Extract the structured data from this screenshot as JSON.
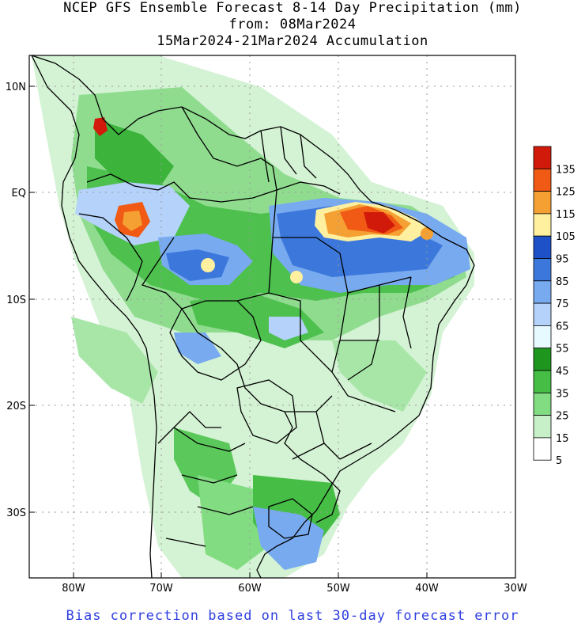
{
  "title": {
    "line1": "NCEP GFS Ensemble Forecast 8-14 Day Precipitation (mm)",
    "line2": "from: 08Mar2024",
    "line3": "15Mar2024-21Mar2024 Accumulation"
  },
  "axes": {
    "lat_labels": [
      "10N",
      "EQ",
      "10S",
      "20S",
      "30S"
    ],
    "lon_labels": [
      "80W",
      "70W",
      "60W",
      "50W",
      "40W",
      "30W"
    ]
  },
  "legend": {
    "labels": [
      "135",
      "125",
      "115",
      "105",
      "95",
      "85",
      "75",
      "65",
      "55",
      "45",
      "35",
      "25",
      "15",
      "5"
    ],
    "colors": [
      "#d11a0a",
      "#f05a14",
      "#f5a032",
      "#fff0a0",
      "#1e50c8",
      "#3c78dc",
      "#78aaf0",
      "#b4d2fa",
      "#e6faff",
      "#1e961e",
      "#46be46",
      "#82dc82",
      "#c8f0c8",
      "#ffffff"
    ]
  },
  "footer": "Bias correction based on last 30-day forecast error"
}
